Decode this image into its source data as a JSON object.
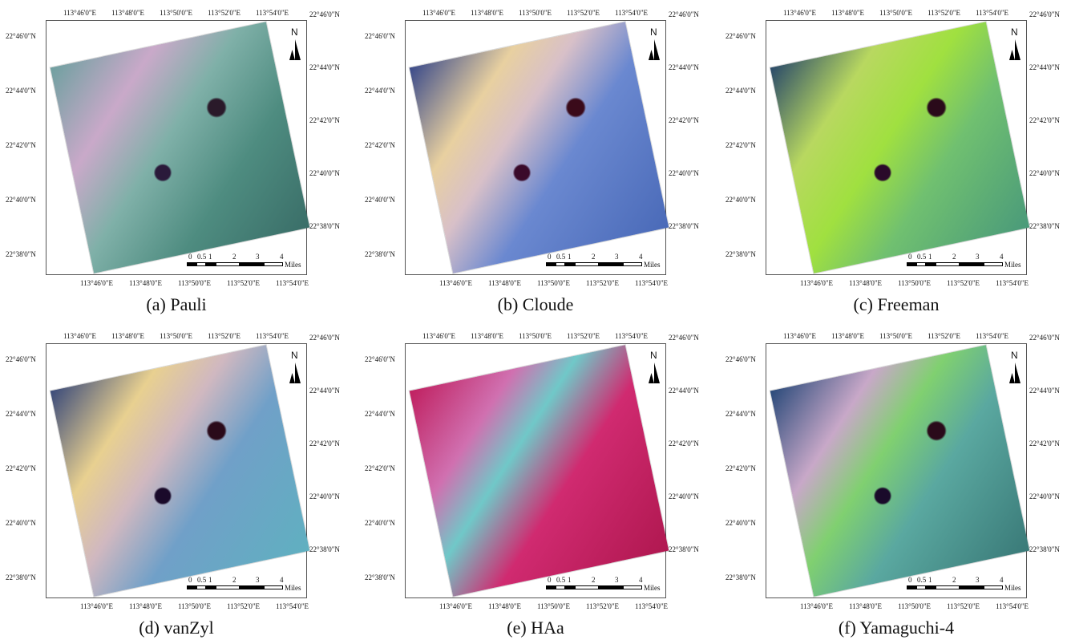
{
  "figure": {
    "top_lon": [
      "113°46'0\"E",
      "113°48'0\"E",
      "113°50'0\"E",
      "113°52'0\"E",
      "113°54'0\"E"
    ],
    "bottom_lon": [
      "113°46'0\"E",
      "113°48'0\"E",
      "113°50'0\"E",
      "113°52'0\"E",
      "113°54'0\"E"
    ],
    "left_lat": [
      "22°46'0\"N",
      "22°44'0\"N",
      "22°42'0\"N",
      "22°40'0\"N",
      "22°38'0\"N"
    ],
    "right_lat": [
      "22°46'0\"N",
      "22°44'0\"N",
      "22°42'0\"N",
      "22°40'0\"N",
      "22°38'0\"N"
    ],
    "scale_labels": [
      "0",
      "0.5",
      "1",
      "2",
      "3",
      "4"
    ],
    "scale_unit": "Miles",
    "north": "N",
    "panels": [
      {
        "caption": "(a) Pauli"
      },
      {
        "caption": "(b) Cloude"
      },
      {
        "caption": "(c) Freeman"
      },
      {
        "caption": "(d) vanZyl"
      },
      {
        "caption": "(e) HAa"
      },
      {
        "caption": "(f) Yamaguchi-4"
      }
    ]
  }
}
